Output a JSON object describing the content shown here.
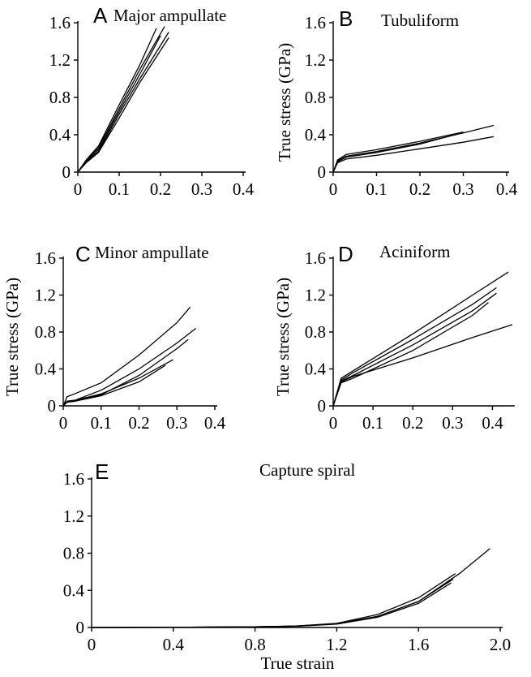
{
  "figure": {
    "x_axis_label": "True strain",
    "y_axis_label": "True stress (GPa)"
  },
  "chart_data": [
    {
      "panel": "A",
      "title": "Major ampullate",
      "type": "line",
      "xlabel": "",
      "ylabel": "",
      "xlim": [
        0,
        0.4
      ],
      "ylim": [
        0,
        1.6
      ],
      "xticks": [
        "0",
        "0.1",
        "0.2",
        "0.3",
        "0.4"
      ],
      "yticks": [
        "0",
        "0.4",
        "0.8",
        "1.2",
        "1.6"
      ],
      "series": [
        {
          "x": [
            0,
            0.02,
            0.05,
            0.1,
            0.15,
            0.19
          ],
          "y": [
            0,
            0.13,
            0.28,
            0.72,
            1.15,
            1.54
          ]
        },
        {
          "x": [
            0,
            0.02,
            0.05,
            0.1,
            0.15,
            0.21
          ],
          "y": [
            0,
            0.12,
            0.26,
            0.68,
            1.1,
            1.56
          ]
        },
        {
          "x": [
            0,
            0.02,
            0.05,
            0.1,
            0.15,
            0.2
          ],
          "y": [
            0,
            0.11,
            0.24,
            0.65,
            1.05,
            1.46
          ]
        },
        {
          "x": [
            0,
            0.02,
            0.05,
            0.1,
            0.15,
            0.22
          ],
          "y": [
            0,
            0.1,
            0.22,
            0.62,
            1.0,
            1.5
          ]
        },
        {
          "x": [
            0,
            0.02,
            0.05,
            0.1,
            0.15,
            0.22
          ],
          "y": [
            0,
            0.1,
            0.21,
            0.58,
            0.96,
            1.44
          ]
        }
      ]
    },
    {
      "panel": "B",
      "title": "Tubuliform",
      "type": "line",
      "xlabel": "",
      "ylabel": "True stress (GPa)",
      "xlim": [
        0,
        0.4
      ],
      "ylim": [
        0,
        1.6
      ],
      "xticks": [
        "0",
        "0.1",
        "0.2",
        "0.3",
        "0.4"
      ],
      "yticks": [
        "0",
        "0.4",
        "0.8",
        "1.2",
        "1.6"
      ],
      "series": [
        {
          "x": [
            0,
            0.01,
            0.03,
            0.1,
            0.2,
            0.3,
            0.37
          ],
          "y": [
            0,
            0.12,
            0.17,
            0.22,
            0.31,
            0.42,
            0.5
          ]
        },
        {
          "x": [
            0,
            0.01,
            0.03,
            0.1,
            0.2,
            0.3
          ],
          "y": [
            0,
            0.13,
            0.19,
            0.24,
            0.33,
            0.43
          ]
        },
        {
          "x": [
            0,
            0.01,
            0.03,
            0.1,
            0.2,
            0.28
          ],
          "y": [
            0,
            0.11,
            0.16,
            0.21,
            0.3,
            0.4
          ]
        },
        {
          "x": [
            0,
            0.01,
            0.03,
            0.1,
            0.2,
            0.3,
            0.37
          ],
          "y": [
            0,
            0.1,
            0.14,
            0.18,
            0.25,
            0.32,
            0.38
          ]
        }
      ]
    },
    {
      "panel": "C",
      "title": "Minor ampullate",
      "type": "line",
      "xlabel": "",
      "ylabel": "True stress (GPa)",
      "xlim": [
        0,
        0.4
      ],
      "ylim": [
        0,
        1.6
      ],
      "xticks": [
        "0",
        "0.1",
        "0.2",
        "0.3",
        "0.4"
      ],
      "yticks": [
        "0",
        "0.4",
        "0.8",
        "1.2",
        "1.6"
      ],
      "series": [
        {
          "x": [
            0,
            0.01,
            0.03,
            0.1,
            0.2,
            0.3,
            0.335
          ],
          "y": [
            0,
            0.1,
            0.13,
            0.25,
            0.55,
            0.9,
            1.07
          ]
        },
        {
          "x": [
            0,
            0.01,
            0.03,
            0.1,
            0.2,
            0.3,
            0.35
          ],
          "y": [
            0,
            0.05,
            0.06,
            0.17,
            0.4,
            0.68,
            0.84
          ]
        },
        {
          "x": [
            0,
            0.01,
            0.03,
            0.1,
            0.2,
            0.3,
            0.33
          ],
          "y": [
            0,
            0.04,
            0.05,
            0.12,
            0.33,
            0.62,
            0.72
          ]
        },
        {
          "x": [
            0,
            0.01,
            0.03,
            0.1,
            0.2,
            0.29
          ],
          "y": [
            0,
            0.05,
            0.06,
            0.13,
            0.3,
            0.5
          ]
        },
        {
          "x": [
            0,
            0.01,
            0.03,
            0.1,
            0.2,
            0.27
          ],
          "y": [
            0,
            0.04,
            0.05,
            0.11,
            0.26,
            0.44
          ]
        }
      ]
    },
    {
      "panel": "D",
      "title": "Aciniform",
      "type": "line",
      "xlabel": "",
      "ylabel": "True stress (GPa)",
      "xlim": [
        0,
        0.45
      ],
      "ylim": [
        0,
        1.6
      ],
      "xticks": [
        "0",
        "0.1",
        "0.2",
        "0.3",
        "0.4"
      ],
      "yticks": [
        "0",
        "0.4",
        "0.8",
        "1.2",
        "1.6"
      ],
      "series": [
        {
          "x": [
            0,
            0.02,
            0.05,
            0.2,
            0.35,
            0.44
          ],
          "y": [
            0,
            0.3,
            0.38,
            0.78,
            1.2,
            1.45
          ]
        },
        {
          "x": [
            0,
            0.02,
            0.05,
            0.2,
            0.35,
            0.41
          ],
          "y": [
            0,
            0.28,
            0.36,
            0.72,
            1.1,
            1.28
          ]
        },
        {
          "x": [
            0,
            0.02,
            0.05,
            0.2,
            0.35,
            0.41
          ],
          "y": [
            0,
            0.27,
            0.33,
            0.66,
            1.03,
            1.22
          ]
        },
        {
          "x": [
            0,
            0.02,
            0.05,
            0.2,
            0.35,
            0.39
          ],
          "y": [
            0,
            0.25,
            0.3,
            0.6,
            0.98,
            1.12
          ]
        },
        {
          "x": [
            0,
            0.02,
            0.05,
            0.2,
            0.35,
            0.45
          ],
          "y": [
            0,
            0.26,
            0.32,
            0.52,
            0.74,
            0.88
          ]
        }
      ]
    },
    {
      "panel": "E",
      "title": "Capture spiral",
      "type": "line",
      "xlabel": "True strain",
      "ylabel": "",
      "xlim": [
        0,
        2.0
      ],
      "ylim": [
        0,
        1.6
      ],
      "xticks": [
        "0",
        "0.4",
        "0.8",
        "1.2",
        "1.6",
        "2.0"
      ],
      "yticks": [
        "0",
        "0.4",
        "0.8",
        "1.2",
        "1.6"
      ],
      "series": [
        {
          "x": [
            0,
            0.4,
            0.8,
            1.0,
            1.2,
            1.4,
            1.6,
            1.8,
            1.95
          ],
          "y": [
            0,
            0.002,
            0.008,
            0.015,
            0.04,
            0.12,
            0.28,
            0.58,
            0.85
          ]
        },
        {
          "x": [
            0,
            0.4,
            0.8,
            1.0,
            1.2,
            1.4,
            1.6,
            1.78
          ],
          "y": [
            0,
            0.002,
            0.008,
            0.016,
            0.045,
            0.14,
            0.32,
            0.58
          ]
        },
        {
          "x": [
            0,
            0.4,
            0.8,
            1.0,
            1.2,
            1.4,
            1.6,
            1.77
          ],
          "y": [
            0,
            0.002,
            0.007,
            0.014,
            0.04,
            0.12,
            0.28,
            0.52
          ]
        },
        {
          "x": [
            0,
            0.4,
            0.8,
            1.0,
            1.2,
            1.4,
            1.6,
            1.76
          ],
          "y": [
            0,
            0.002,
            0.007,
            0.013,
            0.036,
            0.11,
            0.26,
            0.48
          ]
        }
      ]
    }
  ]
}
